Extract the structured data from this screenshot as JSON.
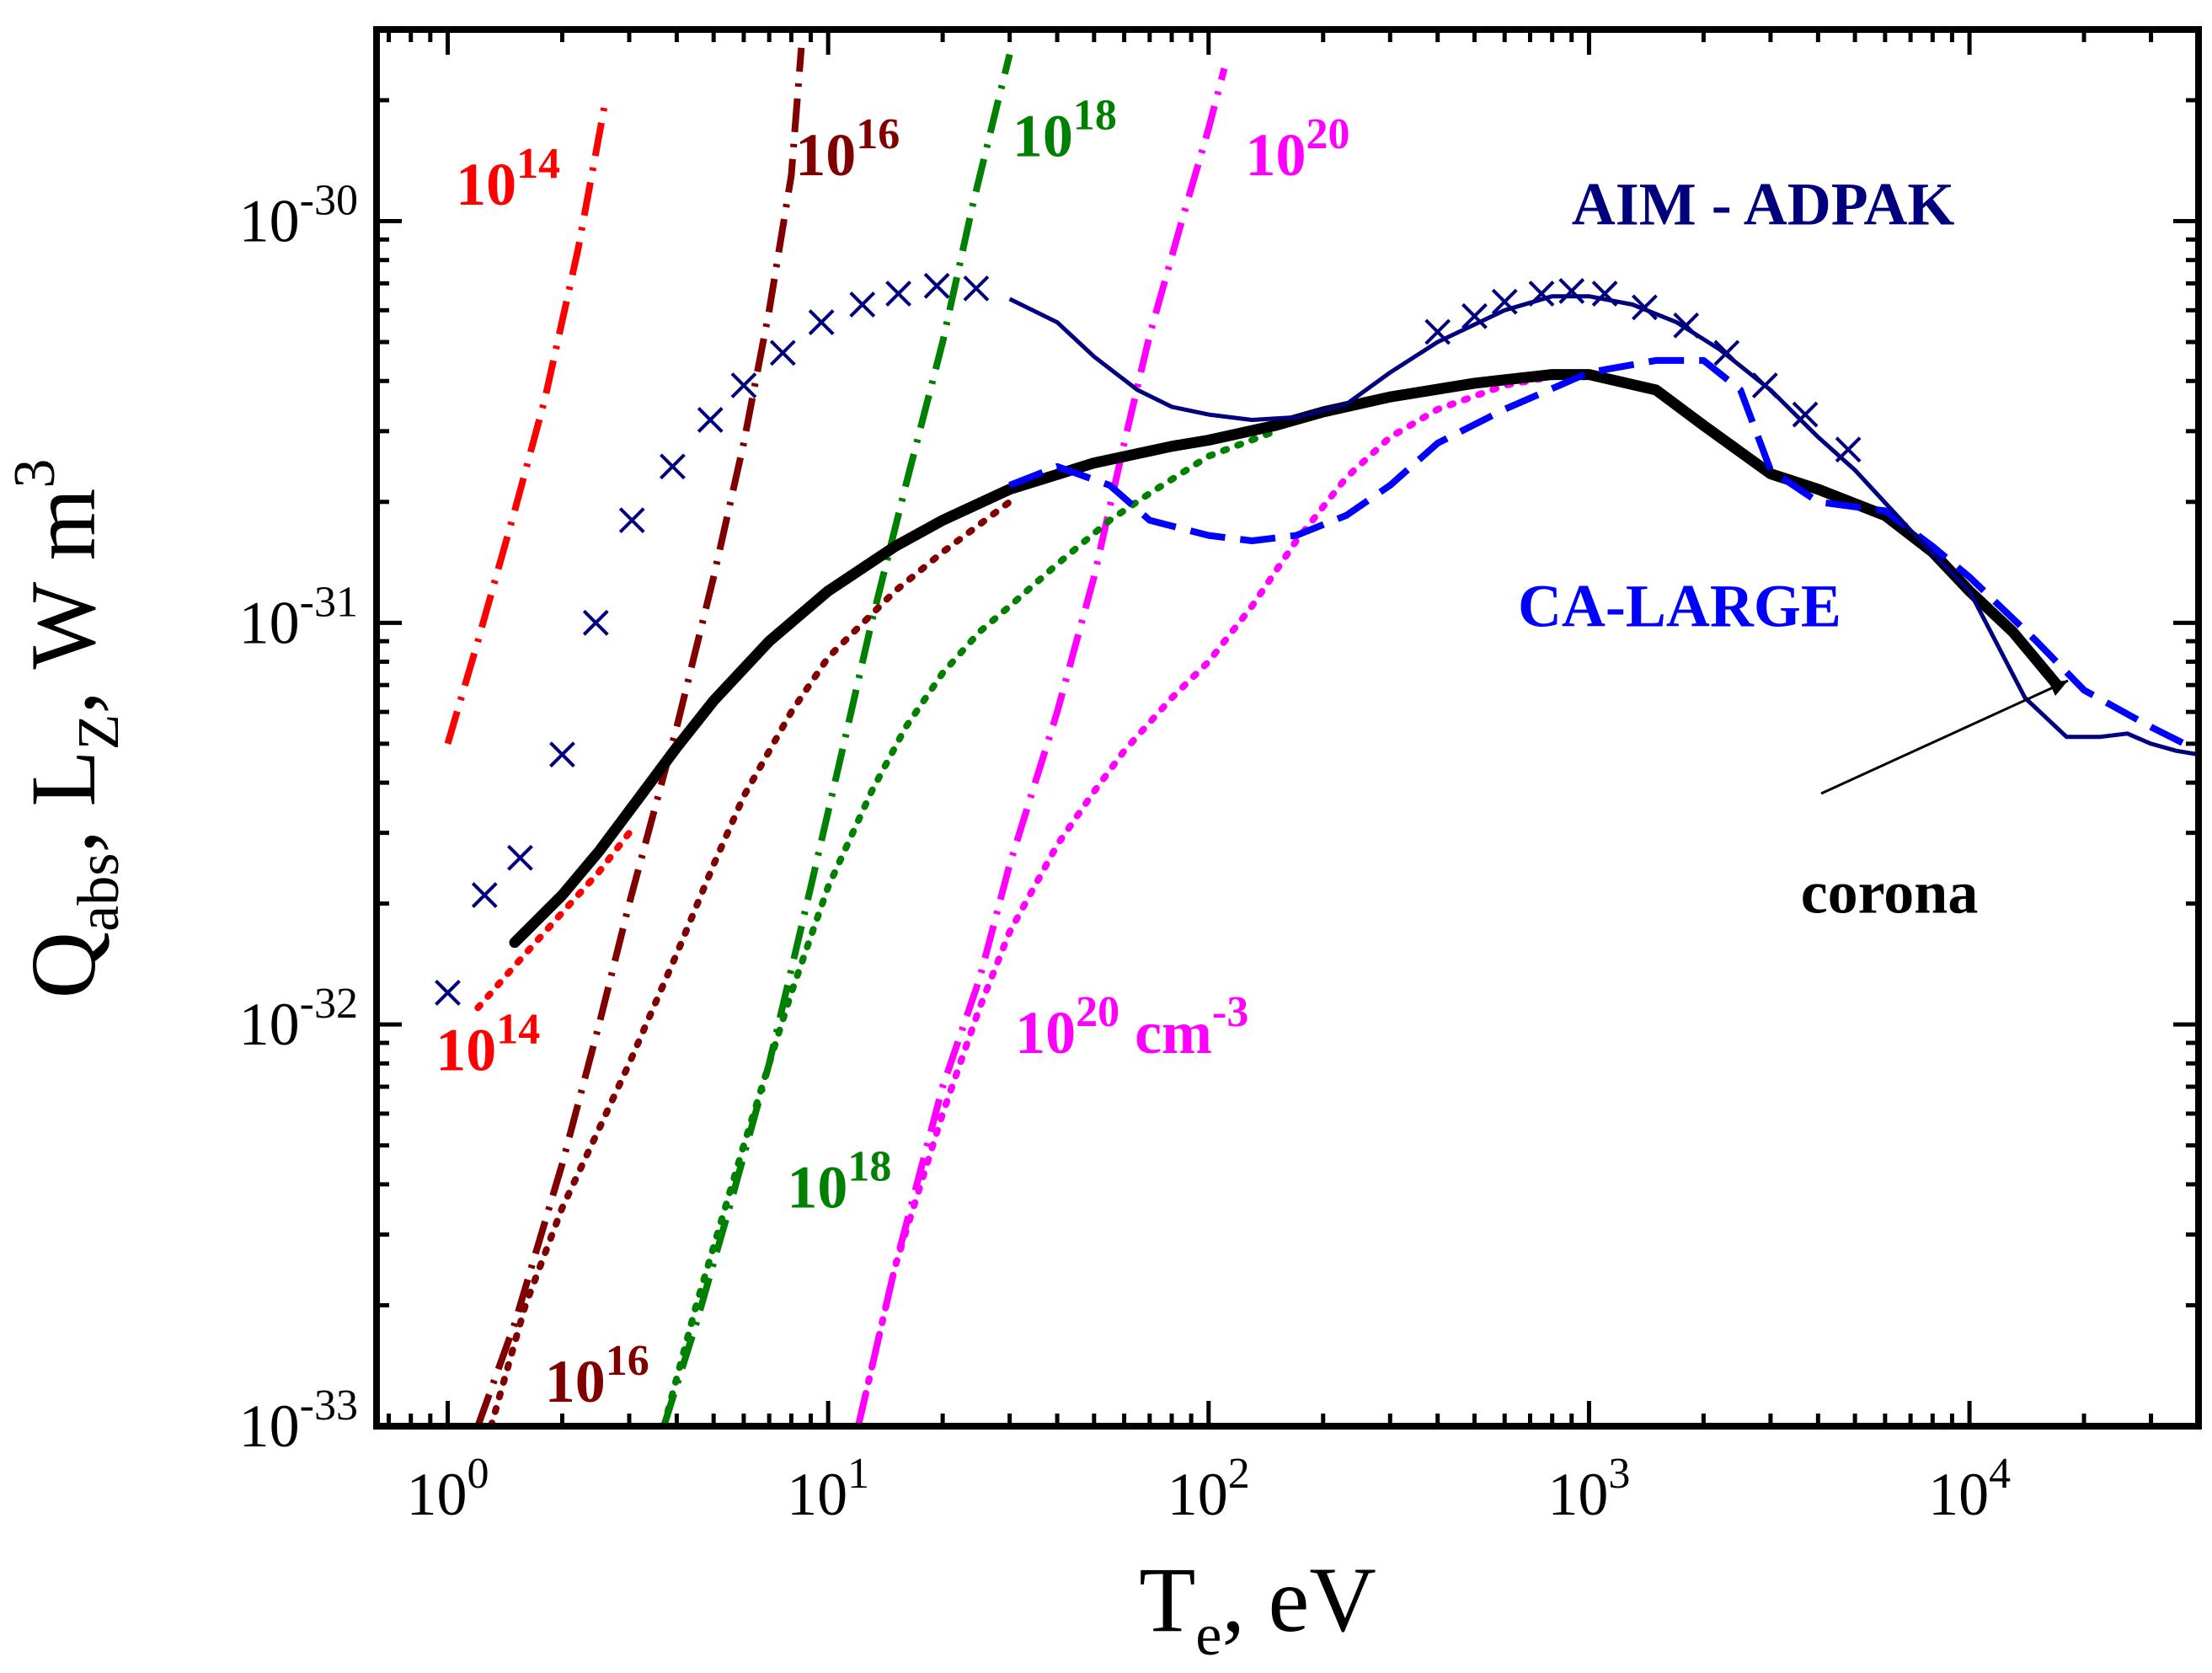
{
  "chart_data": {
    "type": "line",
    "title": "",
    "xscale": "log",
    "yscale": "log",
    "xlim": [
      0.65,
      40000
    ],
    "ylim": [
      1e-33,
      3e-30
    ],
    "xlabel": {
      "main": "T",
      "sub": "e",
      "rest": ", eV"
    },
    "ylabel": {
      "q": "Q",
      "q_sub": "abs",
      "mid": ", L",
      "l_sub": "Z",
      "unit": ", W m",
      "unit_sup": "3"
    },
    "x_ticks": [
      {
        "value": 1,
        "base": "10",
        "exp": "0"
      },
      {
        "value": 10,
        "base": "10",
        "exp": "1"
      },
      {
        "value": 100,
        "base": "10",
        "exp": "2"
      },
      {
        "value": 1000,
        "base": "10",
        "exp": "3"
      },
      {
        "value": 10000,
        "base": "10",
        "exp": "4"
      }
    ],
    "y_ticks": [
      {
        "value": 1e-33,
        "base": "10",
        "exp": "-33"
      },
      {
        "value": 1e-32,
        "base": "10",
        "exp": "-32"
      },
      {
        "value": 1e-31,
        "base": "10",
        "exp": "-31"
      },
      {
        "value": 1e-30,
        "base": "10",
        "exp": "-30"
      }
    ],
    "colors": {
      "red": "#ff0000",
      "darkred": "#800000",
      "green": "#008000",
      "magenta": "#ff00ff",
      "navy": "#00007f",
      "blue": "#0000ff",
      "black": "#000000"
    },
    "series": [
      {
        "name": "Q_abs 1e14",
        "color": "red",
        "style": "dashdot",
        "x": [
          1.0,
          1.2,
          1.5,
          1.8,
          2.2,
          2.6
        ],
        "y": [
          5e-32,
          9e-32,
          1.9e-31,
          3.6e-31,
          8.5e-31,
          2e-30
        ]
      },
      {
        "name": "Q_abs 1e16",
        "color": "darkred",
        "style": "dashdot",
        "x": [
          1.2,
          1.5,
          2.0,
          2.5,
          3.0,
          4.0,
          5.0,
          6.0,
          7.0,
          8.0,
          8.5
        ],
        "y": [
          1e-33,
          1.8e-33,
          4.5e-33,
          1e-32,
          2e-32,
          5.5e-32,
          1.3e-31,
          2.8e-31,
          6e-31,
          1.3e-30,
          2.7e-30
        ]
      },
      {
        "name": "Q_abs 1e18",
        "color": "green",
        "style": "dashdot",
        "x": [
          3.7,
          4.5,
          5.5,
          7.0,
          9.0,
          11.0,
          13.0,
          16.0,
          20.0,
          24.0,
          28.0,
          30.0
        ],
        "y": [
          1e-33,
          1.8e-33,
          3.5e-33,
          8e-33,
          2.2e-32,
          5e-32,
          1e-31,
          2.2e-31,
          5e-31,
          1.1e-30,
          2e-30,
          2.6e-30
        ]
      },
      {
        "name": "Q_abs 1e20",
        "color": "magenta",
        "style": "dashdot",
        "x": [
          12.0,
          15.0,
          20.0,
          25.0,
          30.0,
          40.0,
          50.0,
          60.0,
          70.0,
          85.0,
          100.0,
          110.0
        ],
        "y": [
          1e-33,
          2.5e-33,
          7e-33,
          1.3e-32,
          2.5e-32,
          6e-32,
          1.3e-31,
          2.8e-31,
          5.2e-31,
          1e-30,
          1.7e-30,
          2.4e-30
        ]
      },
      {
        "name": "L_Z 1e14",
        "color": "red",
        "style": "dotted",
        "x": [
          1.2,
          1.5,
          2.0,
          2.5,
          3.0
        ],
        "y": [
          1.1e-32,
          1.4e-32,
          1.9e-32,
          2.4e-32,
          3e-32
        ]
      },
      {
        "name": "L_Z 1e16",
        "color": "darkred",
        "style": "dotted",
        "x": [
          1.3,
          1.6,
          2.0,
          2.5,
          3.0,
          4.0,
          5.0,
          6.0,
          8.0,
          10.0,
          15.0,
          20.0,
          30.0
        ],
        "y": [
          1e-33,
          2e-33,
          3.5e-33,
          5.5e-33,
          8e-33,
          1.5e-32,
          2.5e-32,
          3.7e-32,
          6e-32,
          8.2e-32,
          1.2e-31,
          1.5e-31,
          2e-31
        ]
      },
      {
        "name": "L_Z 1e18",
        "color": "green",
        "style": "dotted",
        "x": [
          3.7,
          4.5,
          6.0,
          8.0,
          10.0,
          13.0,
          16.0,
          20.0,
          25.0,
          30.0,
          40.0,
          55.0,
          70.0,
          100.0,
          150.0
        ],
        "y": [
          1e-33,
          2e-33,
          5e-33,
          1.2e-32,
          2.2e-32,
          3.8e-32,
          5.5e-32,
          7.5e-32,
          9.5e-32,
          1.1e-31,
          1.4e-31,
          1.8e-31,
          2.1e-31,
          2.6e-31,
          3e-31
        ]
      },
      {
        "name": "L_Z 1e20",
        "color": "magenta",
        "style": "dotted",
        "x": [
          12.0,
          15.0,
          20.0,
          25.0,
          30.0,
          40.0,
          50.0,
          60.0,
          80.0,
          100.0,
          130.0,
          170.0,
          230.0,
          300.0,
          400.0,
          600.0,
          800.0,
          1000.0
        ],
        "y": [
          1e-33,
          2.5e-33,
          6e-33,
          1.1e-32,
          1.7e-32,
          2.8e-32,
          3.8e-32,
          4.8e-32,
          6.5e-32,
          8e-32,
          1.1e-31,
          1.6e-31,
          2.3e-31,
          2.9e-31,
          3.4e-31,
          3.9e-31,
          4.1e-31,
          4.1e-31
        ]
      },
      {
        "name": "corona",
        "color": "black",
        "style": "thick",
        "x": [
          1.5,
          2.0,
          2.5,
          3.0,
          4.0,
          5.0,
          7.0,
          10.0,
          15.0,
          20.0,
          30.0,
          50.0,
          80.0,
          100.0,
          150.0,
          200.0,
          300.0,
          500.0,
          800.0,
          1000.0,
          1500.0,
          2000.0,
          3000.0,
          4000.0,
          6000.0,
          8000.0,
          10000.0,
          13000.0,
          17000.0
        ],
        "y": [
          1.6e-32,
          2.1e-32,
          2.7e-32,
          3.4e-32,
          4.9e-32,
          6.4e-32,
          9e-32,
          1.2e-31,
          1.55e-31,
          1.8e-31,
          2.15e-31,
          2.5e-31,
          2.75e-31,
          2.85e-31,
          3.1e-31,
          3.35e-31,
          3.65e-31,
          3.95e-31,
          4.15e-31,
          4.15e-31,
          3.8e-31,
          3.1e-31,
          2.35e-31,
          2.15e-31,
          1.85e-31,
          1.5e-31,
          1.2e-31,
          9.5e-32,
          7e-32
        ]
      },
      {
        "name": "CA-LARGE",
        "color": "blue",
        "style": "dashed",
        "x": [
          30.0,
          40.0,
          55.0,
          70.0,
          100.0,
          130.0,
          170.0,
          230.0,
          300.0,
          400.0,
          600.0,
          1000.0,
          1500.0,
          2000.0,
          2500.0,
          3000.0,
          4000.0,
          6000.0,
          8000.0,
          10000.0,
          15000.0,
          20000.0,
          30000.0,
          40000.0
        ],
        "y": [
          2.2e-31,
          2.45e-31,
          2.2e-31,
          1.8e-31,
          1.65e-31,
          1.6e-31,
          1.65e-31,
          1.85e-31,
          2.2e-31,
          2.8e-31,
          3.4e-31,
          4.2e-31,
          4.5e-31,
          4.5e-31,
          3.8e-31,
          2.4e-31,
          2e-31,
          1.9e-31,
          1.55e-31,
          1.3e-31,
          9e-32,
          6.8e-32,
          5.5e-32,
          4.8e-32
        ]
      },
      {
        "name": "AIM - ADPAK",
        "color": "navy",
        "style": "solid",
        "x": [
          30.0,
          40.0,
          50.0,
          65.0,
          80.0,
          100.0,
          130.0,
          170.0,
          230.0,
          300.0,
          400.0,
          600.0,
          800.0,
          1000.0,
          1300.0,
          1700.0,
          2200.0,
          3000.0,
          4000.0,
          5000.0,
          7000.0,
          10000.0,
          14000.0,
          18000.0,
          22000.0,
          26000.0,
          30000.0,
          35000.0,
          40000.0
        ],
        "y": [
          6.4e-31,
          5.6e-31,
          4.6e-31,
          3.8e-31,
          3.45e-31,
          3.3e-31,
          3.2e-31,
          3.25e-31,
          3.5e-31,
          4.2e-31,
          5e-31,
          6e-31,
          6.5e-31,
          6.5e-31,
          6.2e-31,
          5.6e-31,
          4.8e-31,
          3.8e-31,
          2.9e-31,
          2.4e-31,
          1.7e-31,
          1.2e-31,
          6.5e-32,
          5.2e-32,
          5.2e-32,
          5.3e-32,
          5e-32,
          4.8e-32,
          4.7e-32
        ]
      }
    ],
    "markers": {
      "name": "AIM - ADPAK x-markers",
      "color": "navy",
      "symbol": "x",
      "x": [
        1.0,
        1.25,
        1.55,
        2.0,
        2.45,
        3.05,
        3.9,
        4.9,
        6.0,
        7.6,
        9.6,
        12.3,
        15.3,
        19.3,
        24.5,
        400.0,
        500.0,
        600.0,
        750.0,
        900.0,
        1100.0,
        1400.0,
        1800.0,
        2300.0,
        2900.0,
        3700.0,
        4800.0
      ],
      "y": [
        1.2e-32,
        2.1e-32,
        2.6e-32,
        4.7e-32,
        1e-31,
        1.8e-31,
        2.45e-31,
        3.2e-31,
        3.9e-31,
        4.7e-31,
        5.6e-31,
        6.2e-31,
        6.6e-31,
        6.9e-31,
        6.8e-31,
        5.3e-31,
        5.8e-31,
        6.3e-31,
        6.6e-31,
        6.7e-31,
        6.6e-31,
        6.1e-31,
        5.5e-31,
        4.7e-31,
        3.9e-31,
        3.3e-31,
        2.7e-31
      ]
    },
    "labels": [
      {
        "text": "10",
        "sup": "14",
        "color": "red",
        "x": 1.05,
        "y": 1.1e-30
      },
      {
        "text": "10",
        "sup": "16",
        "color": "darkred",
        "x": 8.2,
        "y": 1.3e-30
      },
      {
        "text": "10",
        "sup": "18",
        "color": "green",
        "x": 30.5,
        "y": 1.45e-30
      },
      {
        "text": "10",
        "sup": "20",
        "color": "magenta",
        "x": 125.0,
        "y": 1.3e-30
      },
      {
        "text": "AIM - ADPAK",
        "color": "navy",
        "x": 900.0,
        "y": 9.8e-31
      },
      {
        "text": "CA-LARGE",
        "color": "blue",
        "x": 650.0,
        "y": 9.8e-32
      },
      {
        "text": "corona",
        "color": "black",
        "x": 3600.0,
        "y": 1.9e-32
      },
      {
        "text": "10",
        "sup": "14",
        "color": "red",
        "x": 0.93,
        "y": 7.7e-33
      },
      {
        "text": "10",
        "sup": "20",
        "sup_suffix": "-3",
        "mid": " cm",
        "color": "magenta",
        "x": 31.0,
        "y": 8.5e-33
      },
      {
        "text": "10",
        "sup": "18",
        "color": "green",
        "x": 7.8,
        "y": 3.5e-33
      },
      {
        "text": "10",
        "sup": "16",
        "color": "darkred",
        "x": 1.8,
        "y": 1.15e-33
      }
    ]
  }
}
